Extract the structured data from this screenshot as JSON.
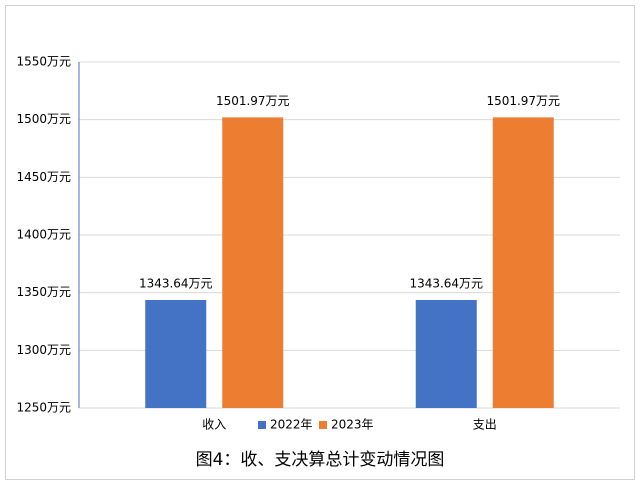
{
  "chart_data": {
    "type": "bar",
    "title": "图4：收、支决算总计变动情况图",
    "categories": [
      "收入",
      "支出"
    ],
    "series": [
      {
        "name": "2022年",
        "color": "#4472c4",
        "values": [
          1343.64,
          1343.64
        ],
        "value_labels": [
          "1343.64万元",
          "1343.64万元"
        ]
      },
      {
        "name": "2023年",
        "color": "#ed7d31",
        "values": [
          1501.97,
          1501.97
        ],
        "value_labels": [
          "1501.97万元",
          "1501.97万元"
        ]
      }
    ],
    "ylim": [
      1250,
      1550
    ],
    "yticks": [
      {
        "value": 1250,
        "label": "1250万元"
      },
      {
        "value": 1300,
        "label": "1300万元"
      },
      {
        "value": 1350,
        "label": "1350万元"
      },
      {
        "value": 1400,
        "label": "1400万元"
      },
      {
        "value": 1450,
        "label": "1450万元"
      },
      {
        "value": 1500,
        "label": "1500万元"
      },
      {
        "value": 1550,
        "label": "1550万元"
      }
    ],
    "grid": true,
    "legend": "bottom"
  }
}
